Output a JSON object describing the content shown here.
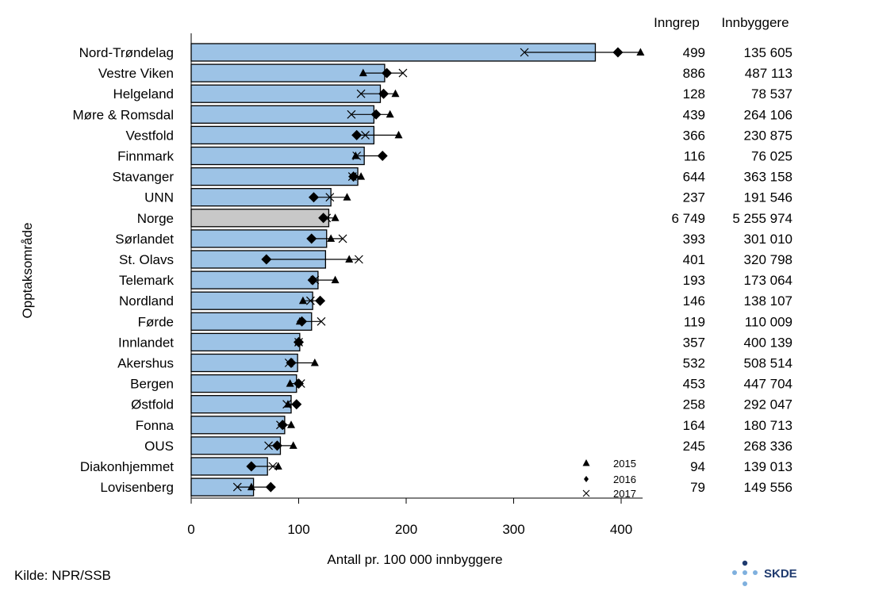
{
  "chart_data": {
    "type": "bar",
    "ylabel": "Opptaksområde",
    "xlabel": "Antall pr. 100 000 innbyggere",
    "xlim": [
      0,
      420
    ],
    "xticks": [
      0,
      100,
      200,
      300,
      400
    ],
    "xtick_labels": [
      "0",
      "100",
      "200",
      "300",
      "400"
    ],
    "table_headers": {
      "inngrep": "Inngrep",
      "innbyggere": "Innbyggere"
    },
    "legend": {
      "s2015": "2015",
      "s2016": "2016",
      "s2017": "2017"
    },
    "colors": {
      "bar": "#9dc3e6",
      "highlight_bar": "#c8c8c8",
      "stroke": "#000000"
    },
    "highlight_category": "Norge",
    "categories": [
      "Nord-Trøndelag",
      "Vestre Viken",
      "Helgeland",
      "Møre & Romsdal",
      "Vestfold",
      "Finnmark",
      "Stavanger",
      "UNN",
      "Norge",
      "Sørlandet",
      "St. Olavs",
      "Telemark",
      "Nordland",
      "Førde",
      "Innlandet",
      "Akershus",
      "Bergen",
      "Østfold",
      "Fonna",
      "OUS",
      "Diakonhjemmet",
      "Lovisenberg"
    ],
    "values": [
      376,
      180,
      176,
      170,
      170,
      161,
      155,
      130,
      128,
      126,
      125,
      118,
      113,
      112,
      101,
      99,
      98,
      93,
      87,
      83,
      71,
      58
    ],
    "series": [
      {
        "name": "2015",
        "marker": "triangle",
        "values": [
          418,
          160,
          190,
          185,
          193,
          153,
          158,
          145,
          134,
          130,
          147,
          134,
          104,
          101,
          100,
          115,
          92,
          90,
          93,
          95,
          81,
          56
        ]
      },
      {
        "name": "2016",
        "marker": "diamond",
        "values": [
          397,
          182,
          179,
          172,
          154,
          178,
          151,
          114,
          123,
          112,
          70,
          113,
          120,
          103,
          100,
          93,
          100,
          98,
          85,
          80,
          56,
          74
        ]
      },
      {
        "name": "2017",
        "marker": "x",
        "values": [
          310,
          197,
          158,
          149,
          162,
          154,
          150,
          129,
          126,
          141,
          156,
          115,
          111,
          121,
          100,
          91,
          102,
          89,
          83,
          72,
          76,
          43
        ]
      }
    ],
    "table": {
      "inngrep": [
        "499",
        "886",
        "128",
        "439",
        "366",
        "116",
        "644",
        "237",
        "6 749",
        "393",
        "401",
        "193",
        "146",
        "119",
        "357",
        "532",
        "453",
        "258",
        "164",
        "245",
        "94",
        "79"
      ],
      "innbyggere": [
        "135 605",
        "487 113",
        "78 537",
        "264 106",
        "230 875",
        "76 025",
        "363 158",
        "191 546",
        "5 255 974",
        "301 010",
        "320 798",
        "173 064",
        "138 107",
        "110 009",
        "400 139",
        "508 514",
        "447 704",
        "292 047",
        "180 713",
        "268 336",
        "139 013",
        "149 556"
      ]
    }
  },
  "footer": {
    "source": "Kilde: NPR/SSB",
    "logo_text": "SKDE"
  }
}
